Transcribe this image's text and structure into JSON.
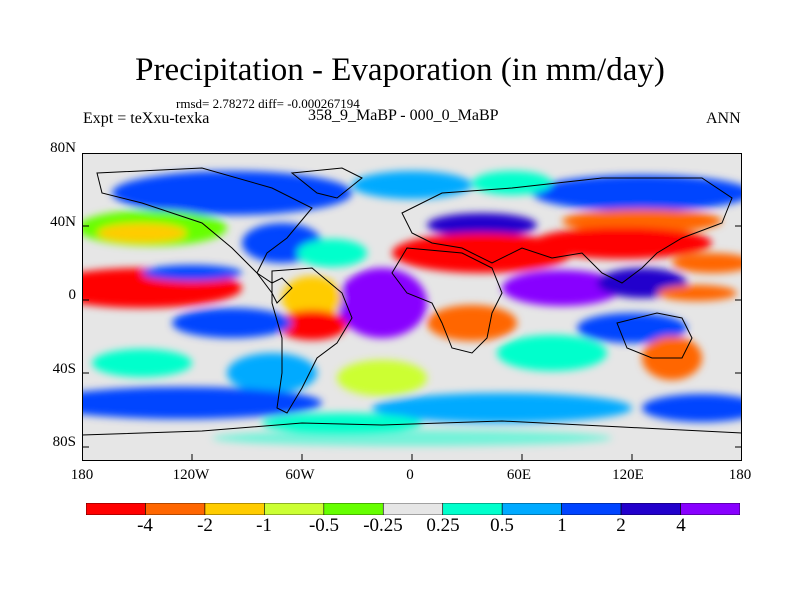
{
  "title": "Precipitation - Evaporation (in mm/day)",
  "stats": "rmsd= 2.78272 diff= -0.000267194",
  "experiment": "Expt = teXxu-texka",
  "period": "358_9_MaBP - 000_0_MaBP",
  "season": "ANN",
  "lat_ticks": [
    "80N",
    "40N",
    "0",
    "40S",
    "80S"
  ],
  "lon_ticks": [
    "180",
    "120W",
    "60W",
    "0",
    "60E",
    "120E",
    "180"
  ],
  "colorbar": {
    "labels": [
      "-4",
      "-2",
      "-1",
      "-0.5",
      "-0.25",
      "0.25",
      "0.5",
      "1",
      "2",
      "4"
    ],
    "colors": [
      "#ff0000",
      "#ff6600",
      "#ffcc00",
      "#ccff33",
      "#66ff00",
      "#e6e6e6",
      "#00ffcc",
      "#00aaff",
      "#0044ff",
      "#2200cc",
      "#8800ff"
    ]
  }
}
